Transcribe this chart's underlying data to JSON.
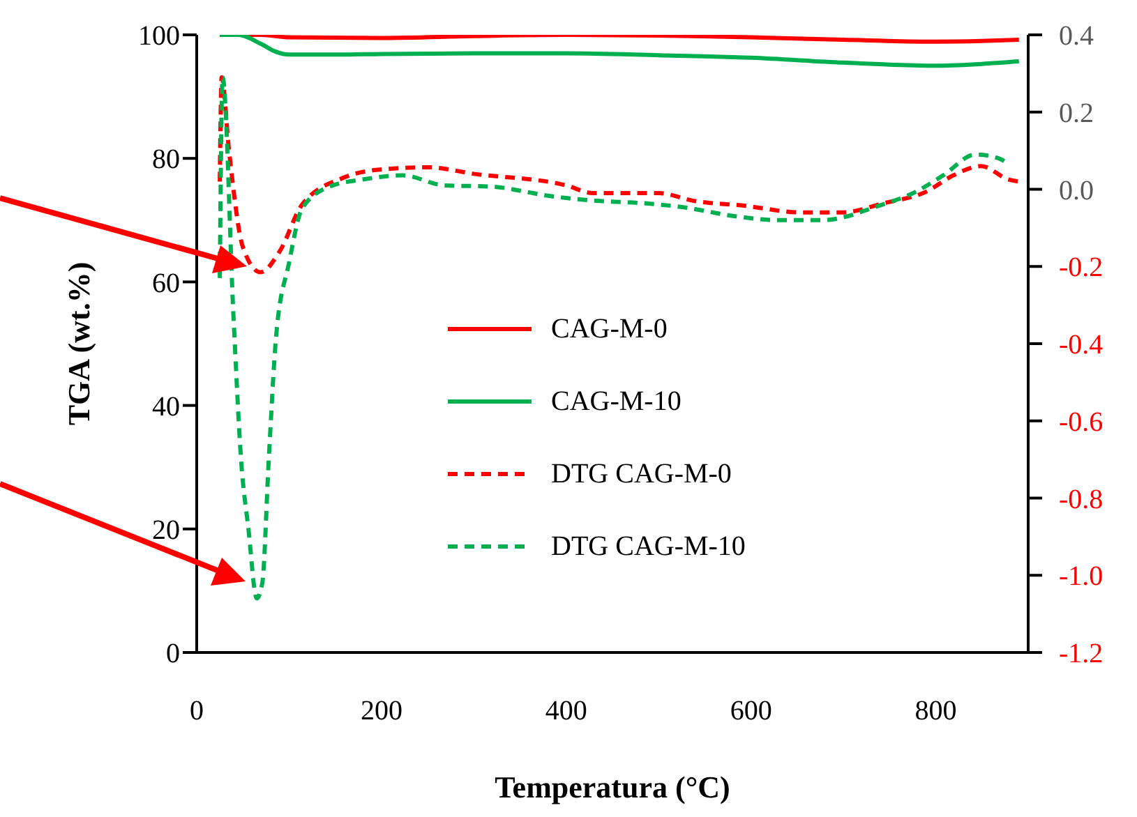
{
  "chart_data": {
    "type": "line",
    "xlabel": "Temperatura (°C)",
    "ylabel": "TGA (wt.%)",
    "xlim": [
      0,
      900
    ],
    "xticks": [
      0,
      200,
      400,
      600,
      800
    ],
    "ylim": [
      0,
      100
    ],
    "yticks": [
      0,
      20,
      40,
      60,
      80,
      100
    ],
    "y2lim": [
      -1.2,
      0.4
    ],
    "y2ticks": [
      {
        "value": -1.2,
        "label": "-1.2"
      },
      {
        "value": -1.0,
        "label": "-1.0"
      },
      {
        "value": -0.8,
        "label": "-0.8"
      },
      {
        "value": -0.6,
        "label": "-0.6"
      },
      {
        "value": -0.4,
        "label": "-0.4"
      },
      {
        "value": -0.2,
        "label": "-0.2"
      },
      {
        "value": 0,
        "label": "0.0"
      },
      {
        "value": 0.2,
        "label": "0.2"
      },
      {
        "value": 0.4,
        "label": "0.4"
      }
    ],
    "legend": "center",
    "grid": false,
    "marker": "none",
    "series": [
      {
        "name": "CAG-M-0",
        "color": "#ff0000",
        "line_style": "solid",
        "x": [
          25,
          45,
          70,
          100,
          200,
          300,
          400,
          500,
          600,
          700,
          800,
          850,
          890
        ],
        "values": [
          100,
          100,
          100,
          99.6,
          99.5,
          99.8,
          100,
          99.9,
          99.6,
          99.2,
          98.9,
          99,
          99.2
        ]
      },
      {
        "name": "CAG-M-10",
        "color": "#00b050",
        "line_style": "solid",
        "x": [
          25,
          45,
          70,
          85,
          100,
          150,
          200,
          300,
          400,
          500,
          600,
          700,
          800,
          850,
          890
        ],
        "values": [
          100,
          100,
          98.5,
          97.3,
          96.8,
          96.8,
          96.9,
          97,
          97,
          96.7,
          96.3,
          95.5,
          95,
          95.3,
          95.7
        ]
      },
      {
        "name": "DTG CAG-M-0",
        "color": "#ff0000",
        "line_style": "dashed",
        "axis": "y2",
        "x": [
          25,
          27,
          35,
          50,
          69,
          90,
          114,
          159,
          194,
          250,
          300,
          400,
          429,
          500,
          538,
          594,
          654,
          699,
          744,
          789,
          819,
          849,
          879,
          890
        ],
        "values": [
          0.02,
          0.29,
          0.1,
          -0.15,
          -0.215,
          -0.16,
          -0.04,
          0.03,
          0.05,
          0.057,
          0.04,
          0.01,
          -0.01,
          -0.01,
          -0.03,
          -0.043,
          -0.06,
          -0.06,
          -0.036,
          -0.007,
          0.036,
          0.06,
          0.025,
          0.02
        ]
      },
      {
        "name": "DTG CAG-M-10",
        "color": "#00b050",
        "line_style": "dashed",
        "axis": "y2",
        "x": [
          25,
          28,
          40,
          48,
          56,
          65,
          71,
          78,
          86,
          100,
          114,
          144,
          179,
          223,
          268,
          318,
          384,
          433,
          483,
          528,
          583,
          628,
          678,
          738,
          778,
          808,
          843,
          868,
          879
        ],
        "values": [
          -0.23,
          0.29,
          -0.34,
          -0.7,
          -0.88,
          -1.06,
          -1.02,
          -0.7,
          -0.38,
          -0.19,
          -0.05,
          0.007,
          0.025,
          0.036,
          0.01,
          0.007,
          -0.018,
          -0.03,
          -0.036,
          -0.047,
          -0.07,
          -0.08,
          -0.08,
          -0.043,
          -0.007,
          0.036,
          0.09,
          0.08,
          0.065
        ]
      }
    ]
  }
}
